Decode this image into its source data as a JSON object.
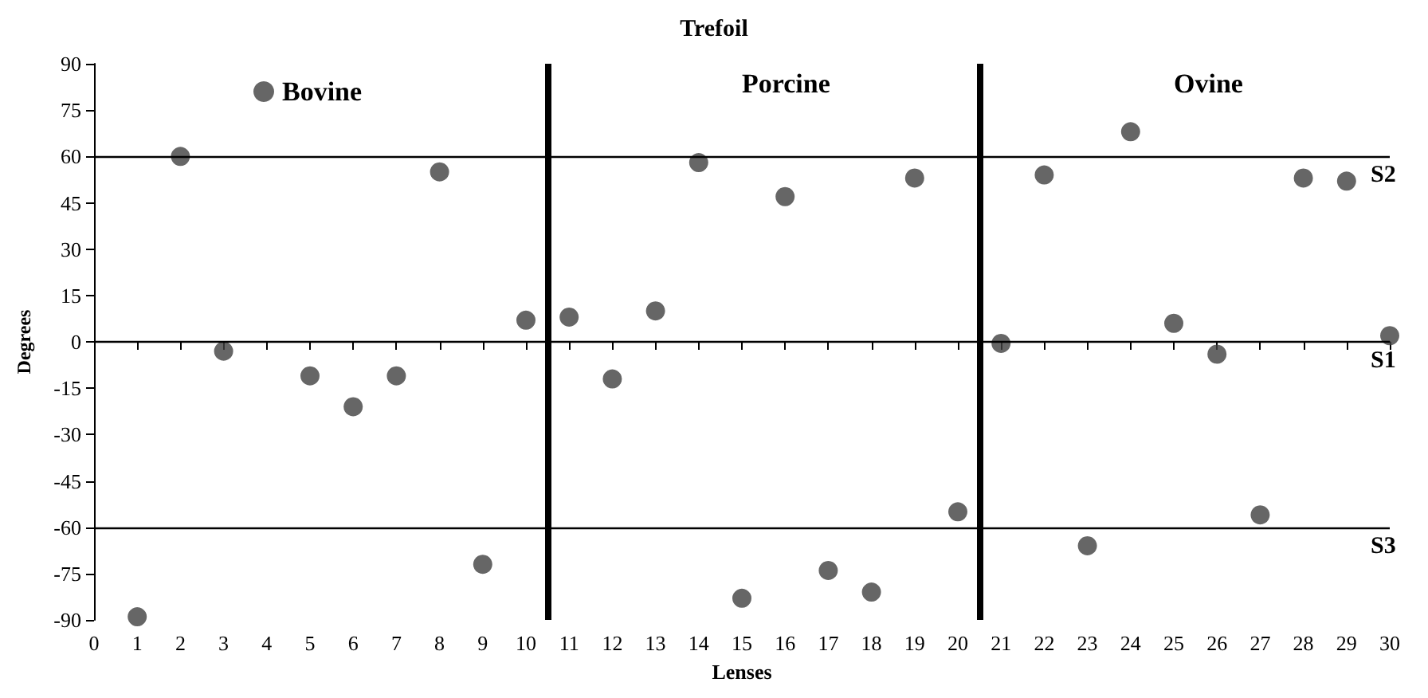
{
  "chart_data": {
    "type": "scatter",
    "title": "Trefoil",
    "xlabel": "Lenses",
    "ylabel": "Degrees",
    "x": [
      1,
      2,
      3,
      5,
      6,
      7,
      8,
      9,
      10,
      11,
      12,
      13,
      14,
      15,
      16,
      17,
      18,
      19,
      20,
      21,
      22,
      23,
      24,
      25,
      26,
      27,
      28,
      29,
      30
    ],
    "series": [
      {
        "name": "Bovine",
        "color": "#404040",
        "values": [
          -89,
          60,
          -3,
          -11,
          -21,
          -11,
          55,
          -72,
          7,
          8,
          -12,
          10,
          58,
          -83,
          47,
          -74,
          -81,
          53,
          -55,
          -0.5,
          54,
          -66,
          68,
          6,
          -4,
          -56,
          53,
          52,
          2
        ]
      }
    ],
    "xlim": [
      0,
      30
    ],
    "xticks": [
      0,
      1,
      2,
      3,
      4,
      5,
      6,
      7,
      8,
      9,
      10,
      11,
      12,
      13,
      14,
      15,
      16,
      17,
      18,
      19,
      20,
      21,
      22,
      23,
      24,
      25,
      26,
      27,
      28,
      29,
      30
    ],
    "ylim": [
      -90,
      90
    ],
    "yticks": [
      -90,
      -75,
      -60,
      -45,
      -30,
      -15,
      0,
      15,
      30,
      45,
      60,
      75,
      90
    ],
    "ref_lines": [
      {
        "axis": "y",
        "value": 60,
        "label": "S2",
        "color": "#000000"
      },
      {
        "axis": "y",
        "value": 0,
        "label": "S1",
        "color": "#000000"
      },
      {
        "axis": "y",
        "value": -60,
        "label": "S3",
        "color": "#000000"
      },
      {
        "axis": "x",
        "value": 10.5,
        "label": null,
        "color": "#000000"
      },
      {
        "axis": "x",
        "value": 20.5,
        "label": null,
        "color": "#000000"
      }
    ],
    "annotations": [
      "Porcine",
      "Ovine"
    ],
    "legend": "top left",
    "marker": "circle"
  }
}
